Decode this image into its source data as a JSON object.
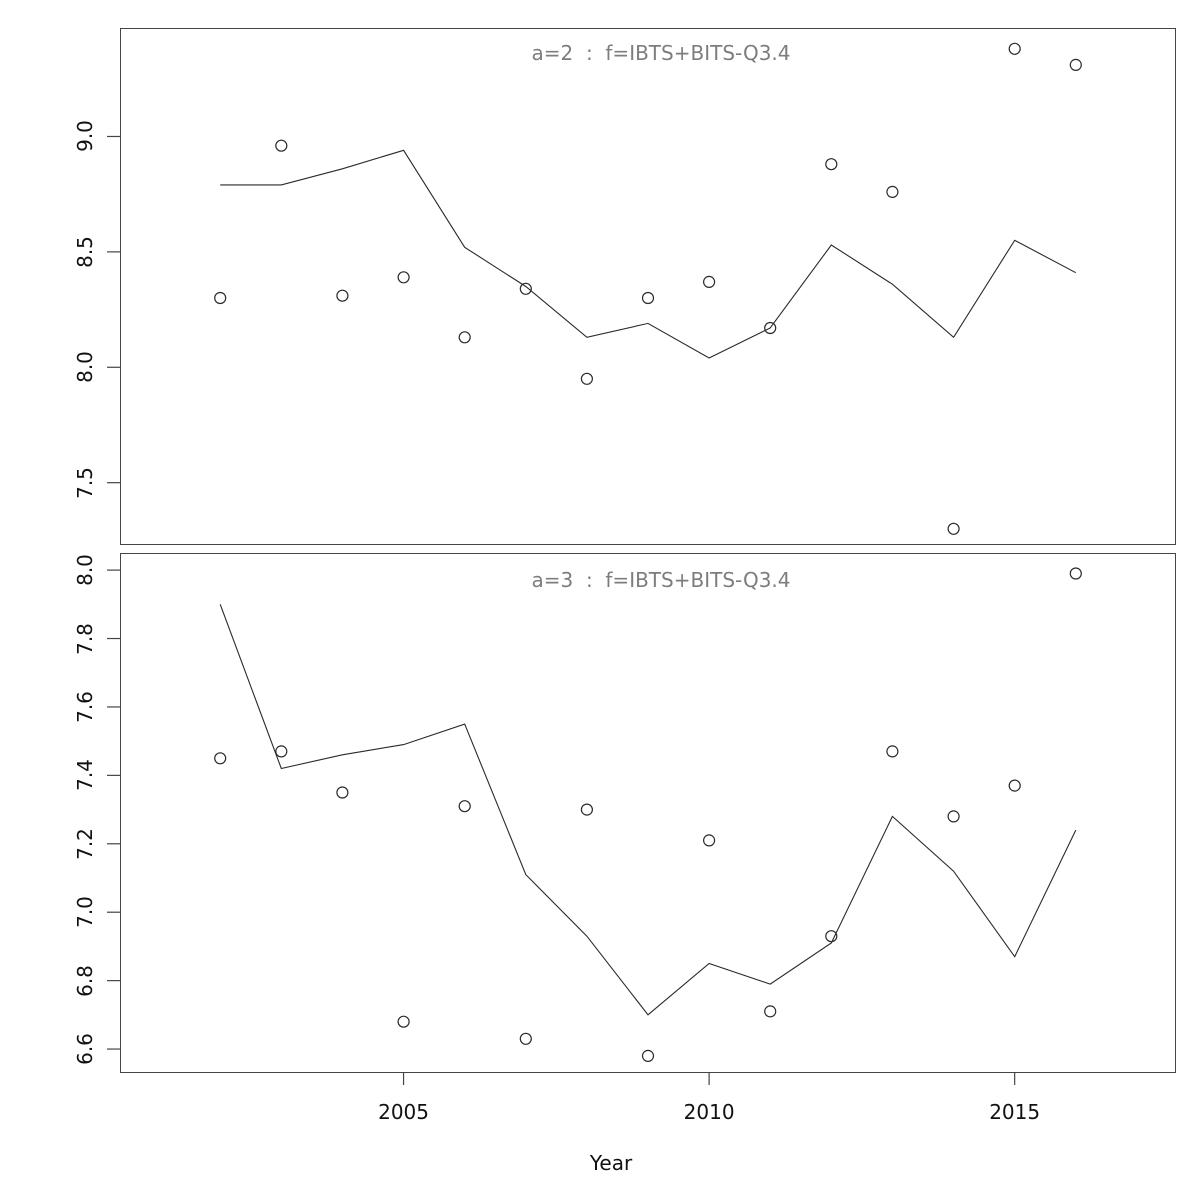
{
  "figure": {
    "xlabel": "Year",
    "x_tick_values": [
      2005,
      2010,
      2015
    ],
    "x_tick_labels": [
      "2005",
      "2010",
      "2015"
    ],
    "xlim": [
      2000.36,
      2017.64
    ],
    "colors": {
      "background": "#ffffff",
      "title_gray": "#7d7d7d",
      "axis": "#454545",
      "line": "#2a2a2a",
      "marker_stroke": "#2a2a2a"
    }
  },
  "chart_data": [
    {
      "type": "line",
      "title": "a=2  :  f=IBTS+BITS-Q3.4",
      "xlabel": "Year",
      "ylabel": "",
      "grid": false,
      "legend": "none",
      "x": [
        2002,
        2003,
        2004,
        2005,
        2006,
        2007,
        2008,
        2009,
        2010,
        2011,
        2012,
        2013,
        2014,
        2015,
        2016
      ],
      "ylim": [
        7.23,
        9.47
      ],
      "y_tick_values": [
        7.5,
        8.0,
        8.5,
        9.0
      ],
      "y_tick_labels": [
        "7.5",
        "8.0",
        "8.5",
        "9.0"
      ],
      "series": [
        {
          "name": "observed-index",
          "style": "points",
          "marker": "open-circle",
          "values": [
            8.3,
            8.96,
            8.31,
            8.39,
            8.13,
            8.34,
            7.95,
            8.3,
            8.37,
            8.17,
            8.88,
            8.76,
            7.3,
            9.38,
            9.31
          ]
        },
        {
          "name": "fitted-line",
          "style": "line",
          "values": [
            8.79,
            8.79,
            8.86,
            8.94,
            8.52,
            8.35,
            8.13,
            8.19,
            8.04,
            8.17,
            8.53,
            8.36,
            8.13,
            8.55,
            8.41
          ]
        }
      ]
    },
    {
      "type": "line",
      "title": "a=3  :  f=IBTS+BITS-Q3.4",
      "xlabel": "Year",
      "ylabel": "",
      "grid": false,
      "legend": "none",
      "x": [
        2002,
        2003,
        2004,
        2005,
        2006,
        2007,
        2008,
        2009,
        2010,
        2011,
        2012,
        2013,
        2014,
        2015,
        2016
      ],
      "ylim": [
        6.53,
        8.05
      ],
      "y_tick_values": [
        6.6,
        6.8,
        7.0,
        7.2,
        7.4,
        7.6,
        7.8,
        8.0
      ],
      "y_tick_labels": [
        "6.6",
        "6.8",
        "7.0",
        "7.2",
        "7.4",
        "7.6",
        "7.8",
        "8.0"
      ],
      "series": [
        {
          "name": "observed-index",
          "style": "points",
          "marker": "open-circle",
          "values": [
            7.45,
            7.47,
            7.35,
            6.68,
            7.31,
            6.63,
            7.3,
            6.58,
            7.21,
            6.71,
            6.93,
            7.47,
            7.28,
            7.37,
            7.99
          ]
        },
        {
          "name": "fitted-line",
          "style": "line",
          "values": [
            7.9,
            7.42,
            7.46,
            7.49,
            7.55,
            7.11,
            6.93,
            6.7,
            6.85,
            6.79,
            6.91,
            7.28,
            7.12,
            6.87,
            7.24
          ]
        }
      ]
    }
  ]
}
